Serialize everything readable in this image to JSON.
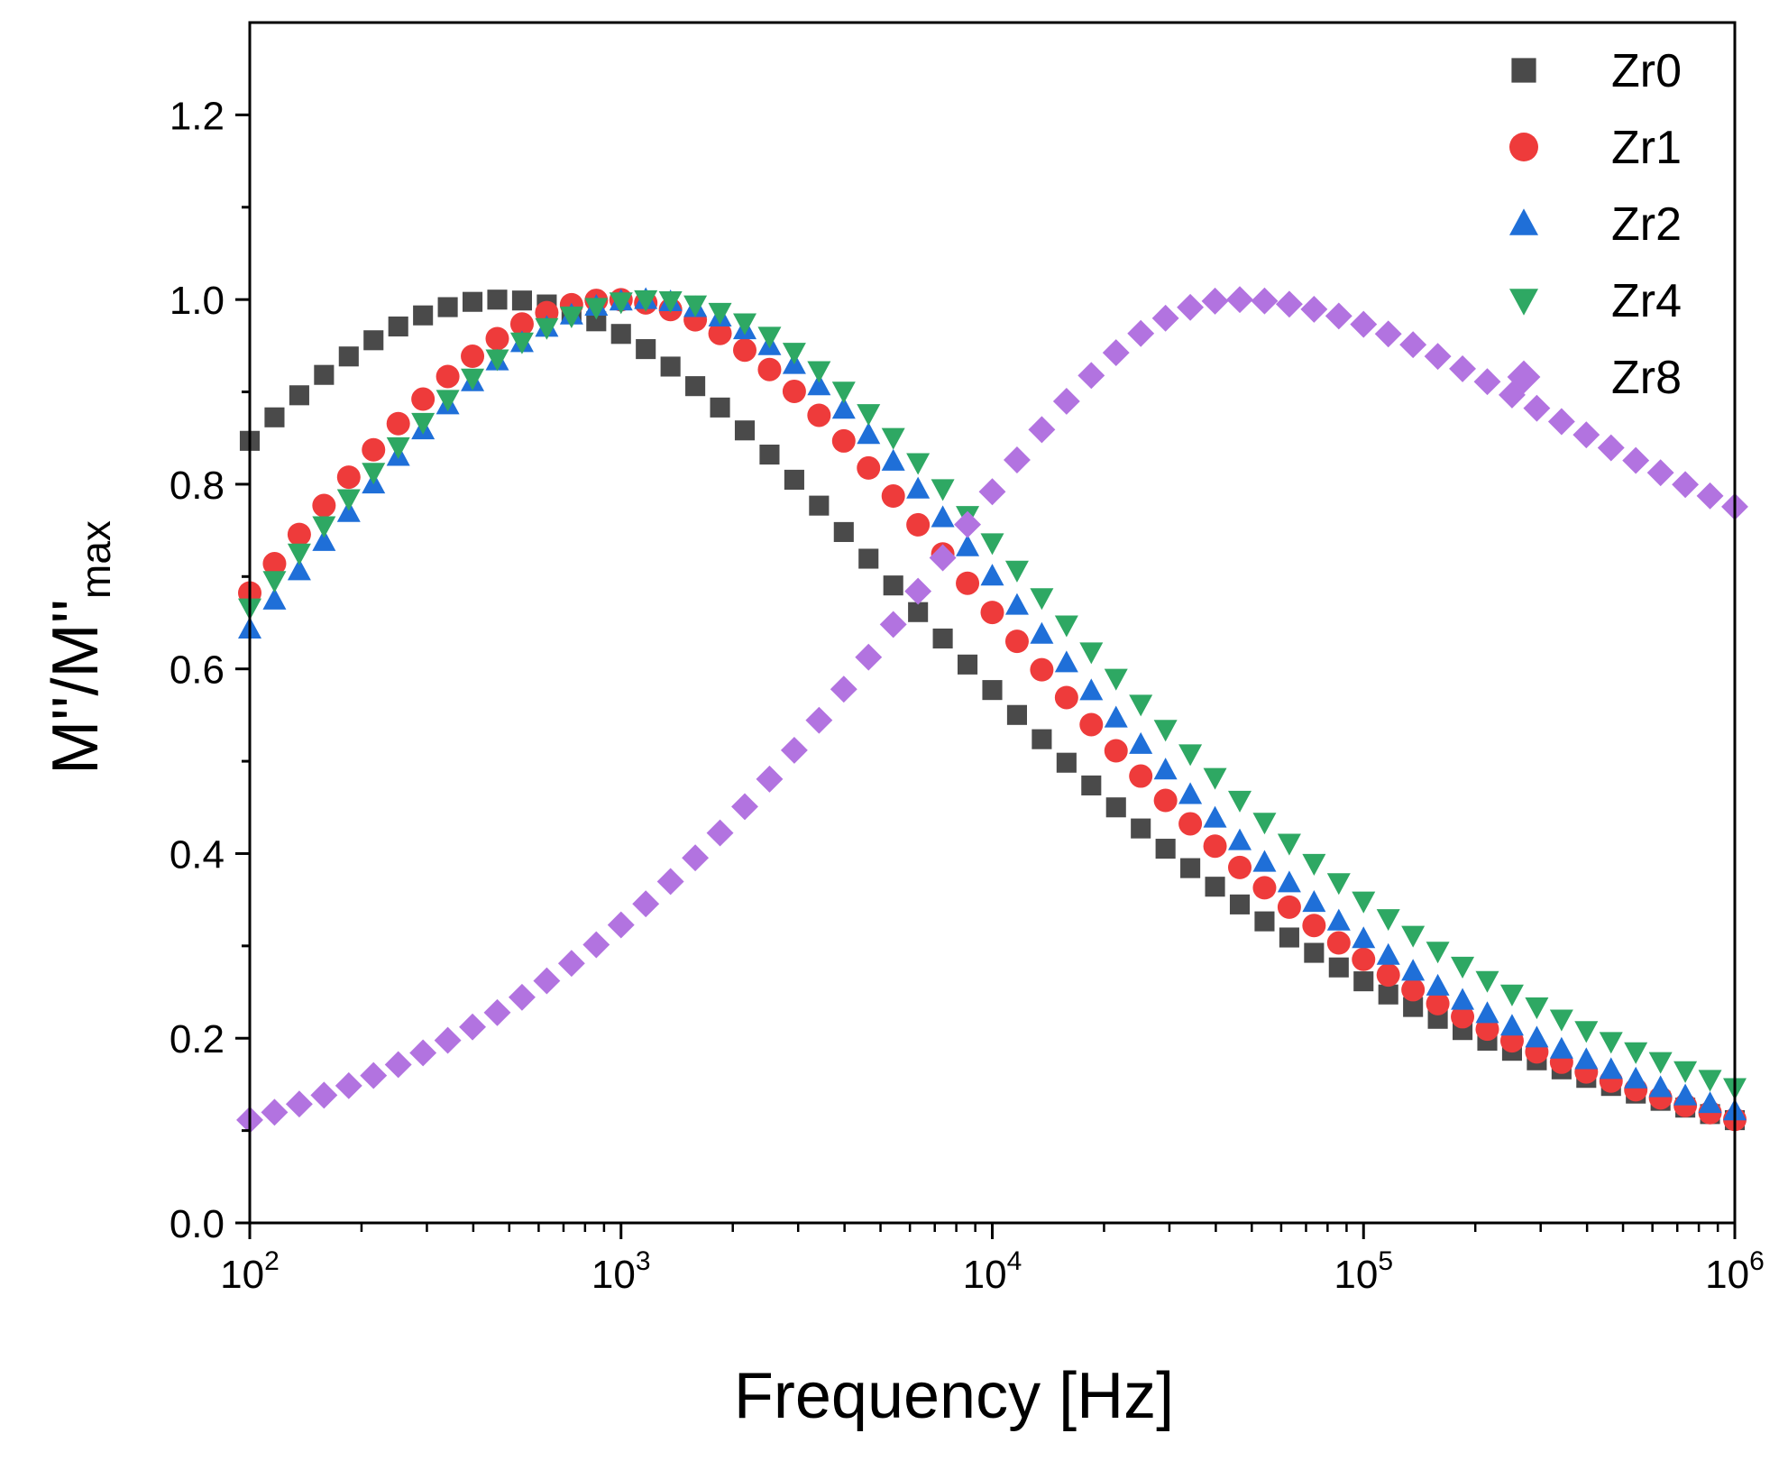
{
  "chart_data": {
    "type": "scatter",
    "xscale": "log",
    "xlabel": "Frequency [Hz]",
    "ylabel": "M''/M''max",
    "ylabel_parts": {
      "main": "M''/M''",
      "subscript": "max"
    },
    "xlim": [
      100,
      1000000
    ],
    "ylim": [
      0.0,
      1.3
    ],
    "xticks": [
      {
        "value": 100,
        "base": "10",
        "exp": "2"
      },
      {
        "value": 1000,
        "base": "10",
        "exp": "3"
      },
      {
        "value": 10000,
        "base": "10",
        "exp": "4"
      },
      {
        "value": 100000,
        "base": "10",
        "exp": "5"
      },
      {
        "value": 1000000,
        "base": "10",
        "exp": "6"
      }
    ],
    "yticks": [
      {
        "value": 0.0,
        "label": "0.0"
      },
      {
        "value": 0.2,
        "label": "0.2"
      },
      {
        "value": 0.4,
        "label": "0.4"
      },
      {
        "value": 0.6,
        "label": "0.6"
      },
      {
        "value": 0.8,
        "label": "0.8"
      },
      {
        "value": 1.0,
        "label": "1.0"
      },
      {
        "value": 1.2,
        "label": "1.2"
      }
    ],
    "grid": false,
    "legend_position": "top-right",
    "series": [
      {
        "name": "Zr0",
        "color": "#4a4a4a",
        "marker": "square",
        "peak_frequency_hz": 480,
        "width": 1.15,
        "high_freq_floor": 0.0
      },
      {
        "name": "Zr1",
        "color": "#ee3b3b",
        "marker": "circle",
        "peak_frequency_hz": 950,
        "width": 1.05,
        "high_freq_floor": 0.0
      },
      {
        "name": "Zr2",
        "color": "#1f6fd8",
        "marker": "triangle-up",
        "peak_frequency_hz": 1150,
        "width": 1.05,
        "high_freq_floor": 0.0
      },
      {
        "name": "Zr4",
        "color": "#2ea863",
        "marker": "triangle-down",
        "peak_frequency_hz": 1200,
        "width": 1.12,
        "high_freq_floor": 0.0
      },
      {
        "name": "Zr8",
        "color": "#b273e0",
        "marker": "diamond",
        "peak_frequency_hz": 45000,
        "width": 0.92,
        "high_freq_floor": 0.6
      }
    ],
    "points_per_decade": 15
  }
}
